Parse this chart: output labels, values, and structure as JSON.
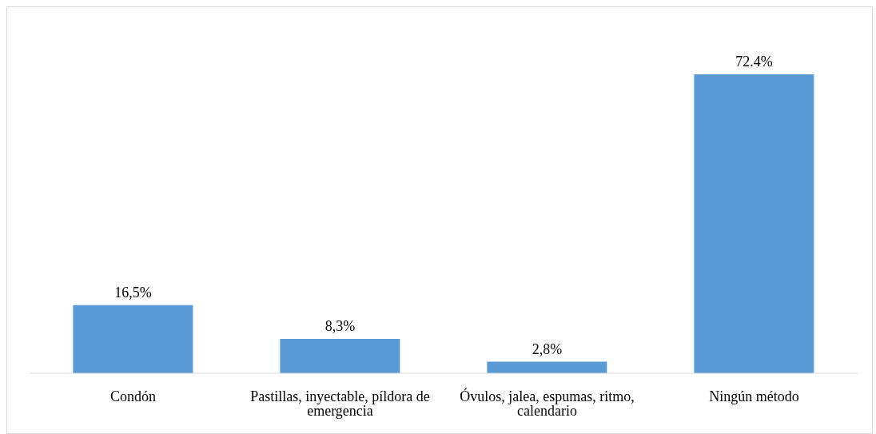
{
  "chart_data": {
    "type": "bar",
    "categories": [
      "Condón",
      "Pastillas, inyectable, píldora de emergencia",
      "Óvulos, jalea, espumas, ritmo, calendario",
      "Ningún método"
    ],
    "values": [
      16.5,
      8.3,
      2.8,
      72.4
    ],
    "value_labels": [
      "16,5%",
      "8,3%",
      "2,8%",
      "72.4%"
    ],
    "color": "#5b9bd5"
  }
}
